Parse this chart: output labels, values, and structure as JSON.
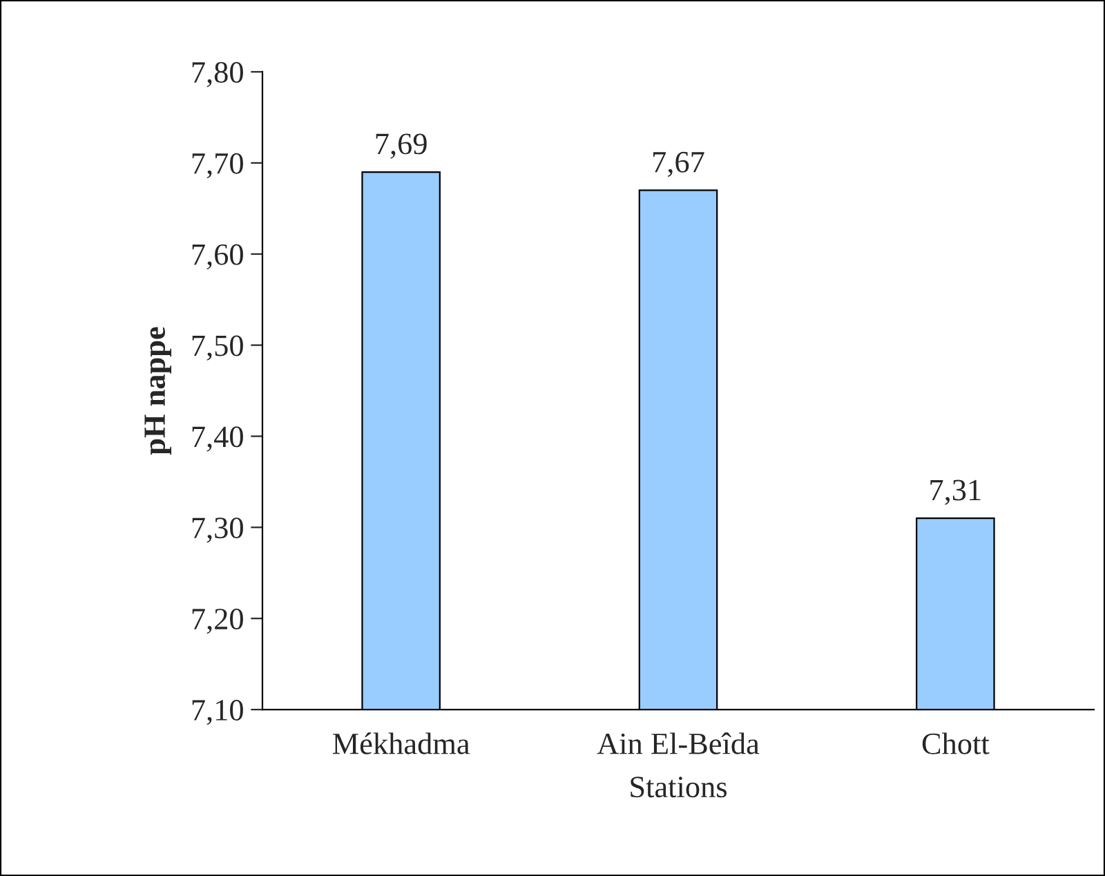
{
  "chart_data": {
    "type": "bar",
    "xlabel": "Stations",
    "ylabel": "pH nappe",
    "categories": [
      "Mékhadma",
      "Ain El-Beîda",
      "Chott"
    ],
    "values": [
      7.69,
      7.67,
      7.31
    ],
    "value_labels": [
      "7,69",
      "7,67",
      "7,31"
    ],
    "color": "#99ccff",
    "ylim": [
      7.1,
      7.8
    ],
    "yticks": [
      {
        "value": 7.1,
        "label": "7,10"
      },
      {
        "value": 7.2,
        "label": "7,20"
      },
      {
        "value": 7.3,
        "label": "7,30"
      },
      {
        "value": 7.4,
        "label": "7,40"
      },
      {
        "value": 7.5,
        "label": "7,50"
      },
      {
        "value": 7.6,
        "label": "7,60"
      },
      {
        "value": 7.7,
        "label": "7,70"
      },
      {
        "value": 7.8,
        "label": "7,80"
      }
    ],
    "grid": false
  }
}
